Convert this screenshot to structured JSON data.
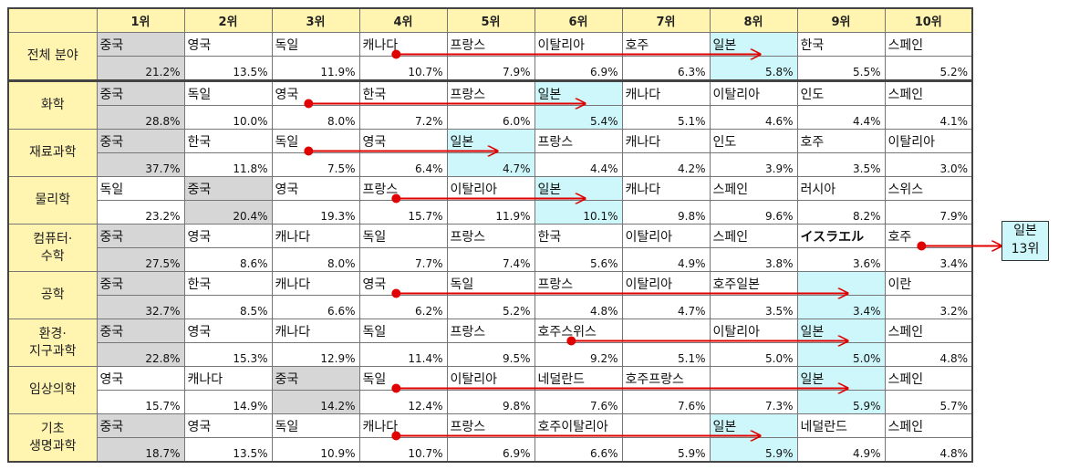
{
  "chart_data": {
    "type": "table",
    "ranks": [
      "1위",
      "2위",
      "3위",
      "4위",
      "5위",
      "6위",
      "7위",
      "8위",
      "9위",
      "10위"
    ],
    "rows": [
      {
        "field": "전체 분야",
        "countries": [
          "중국",
          "영국",
          "독일",
          "캐나다",
          "프랑스",
          "이탈리아",
          "호주",
          "일본",
          "한국",
          "스페인"
        ],
        "values": [
          "21.2%",
          "13.5%",
          "11.9%",
          "10.7%",
          "7.9%",
          "6.9%",
          "6.3%",
          "5.8%",
          "5.5%",
          "5.2%"
        ],
        "highlight": {
          "0": "china",
          "7": "japan"
        },
        "arrow": {
          "from": 3,
          "to": 7
        }
      },
      {
        "field": "화학",
        "countries": [
          "중국",
          "독일",
          "영국",
          "한국",
          "프랑스",
          "일본",
          "캐나다",
          "이탈리아",
          "인도",
          "스페인"
        ],
        "values": [
          "28.8%",
          "10.0%",
          "8.0%",
          "7.2%",
          "6.0%",
          "5.4%",
          "5.1%",
          "4.6%",
          "4.4%",
          "4.1%"
        ],
        "highlight": {
          "0": "china",
          "5": "japan"
        },
        "arrow": {
          "from": 2,
          "to": 5
        }
      },
      {
        "field": "재료과학",
        "countries": [
          "중국",
          "한국",
          "독일",
          "영국",
          "일본",
          "프랑스",
          "캐나다",
          "인도",
          "호주",
          "이탈리아"
        ],
        "values": [
          "37.7%",
          "11.8%",
          "7.5%",
          "6.4%",
          "4.7%",
          "4.4%",
          "4.2%",
          "3.9%",
          "3.5%",
          "3.0%"
        ],
        "highlight": {
          "0": "china",
          "4": "japan"
        },
        "arrow": {
          "from": 2,
          "to": 4
        }
      },
      {
        "field": "물리학",
        "countries": [
          "독일",
          "중국",
          "영국",
          "프랑스",
          "이탈리아",
          "일본",
          "캐나다",
          "스페인",
          "러시아",
          "스위스"
        ],
        "values": [
          "23.2%",
          "20.4%",
          "19.3%",
          "15.7%",
          "11.9%",
          "10.1%",
          "9.8%",
          "9.6%",
          "8.2%",
          "7.9%"
        ],
        "highlight": {
          "1": "china",
          "5": "japan"
        },
        "arrow": {
          "from": 3,
          "to": 5
        }
      },
      {
        "field": "컴퓨터·\n수학",
        "countries": [
          "중국",
          "영국",
          "캐나다",
          "독일",
          "프랑스",
          "한국",
          "이탈리아",
          "스페인",
          "イスラエル",
          "호주"
        ],
        "values": [
          "27.5%",
          "8.6%",
          "8.0%",
          "7.7%",
          "7.4%",
          "5.6%",
          "4.9%",
          "3.8%",
          "3.6%",
          "3.4%"
        ],
        "highlight": {
          "0": "china"
        },
        "bold": [
          8
        ],
        "arrow": {
          "from": 9,
          "to": "outside"
        }
      },
      {
        "field": "공학",
        "countries": [
          "중국",
          "한국",
          "캐나다",
          "영국",
          "독일",
          "프랑스",
          "이탈리아",
          "호주일본",
          "",
          "이란"
        ],
        "values": [
          "32.7%",
          "8.5%",
          "6.6%",
          "6.2%",
          "5.2%",
          "4.8%",
          "4.7%",
          "3.5%",
          "3.4%",
          "3.2%"
        ],
        "highlight": {
          "0": "china",
          "8": "japan"
        },
        "arrow": {
          "from": 3,
          "to": 8
        }
      },
      {
        "field": "환경·\n지구과학",
        "countries": [
          "중국",
          "영국",
          "캐나다",
          "독일",
          "프랑스",
          "호주스위스",
          "",
          "이탈리아",
          "일본",
          "스페인"
        ],
        "values": [
          "22.8%",
          "15.3%",
          "12.9%",
          "11.4%",
          "9.5%",
          "9.2%",
          "5.1%",
          "5.0%",
          "5.0%",
          "4.8%"
        ],
        "highlight": {
          "0": "china",
          "8": "japan"
        },
        "arrow": {
          "from": 5,
          "to": 8
        }
      },
      {
        "field": "임상의학",
        "countries": [
          "영국",
          "캐나다",
          "중국",
          "독일",
          "이탈리아",
          "네덜란드",
          "호주프랑스",
          "",
          "일본",
          "스페인"
        ],
        "values": [
          "15.7%",
          "14.9%",
          "14.2%",
          "12.4%",
          "9.8%",
          "7.6%",
          "7.6%",
          "7.3%",
          "5.9%",
          "5.7%"
        ],
        "highlight": {
          "2": "china",
          "8": "japan"
        },
        "arrow": {
          "from": 3,
          "to": 8
        }
      },
      {
        "field": "기초\n생명과학",
        "countries": [
          "중국",
          "영국",
          "독일",
          "캐나다",
          "프랑스",
          "호주이탈리아",
          "",
          "일본",
          "네덜란드",
          "스페인"
        ],
        "values": [
          "18.7%",
          "13.5%",
          "10.9%",
          "10.7%",
          "6.9%",
          "6.6%",
          "5.9%",
          "5.9%",
          "4.9%",
          "4.8%"
        ],
        "highlight": {
          "0": "china",
          "7": "japan"
        },
        "arrow": {
          "from": 3,
          "to": 7
        }
      }
    ],
    "outside_note": {
      "country": "일본",
      "rank": "13위"
    }
  }
}
